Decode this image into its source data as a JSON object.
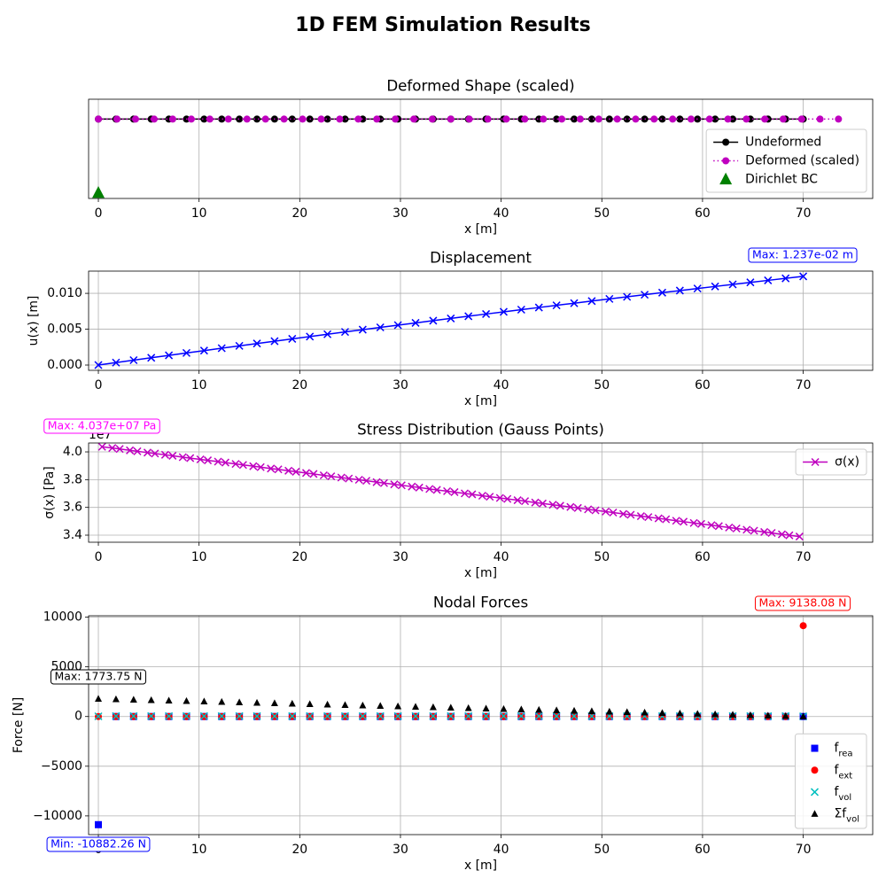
{
  "title": "1D FEM Simulation Results",
  "chart_data": [
    {
      "type": "line",
      "title": "Deformed Shape (scaled)",
      "xlabel": "x [m]",
      "xlim": [
        -0.97,
        76.9
      ],
      "ylim": [
        -1,
        0.25
      ],
      "xticks": [
        0,
        10,
        20,
        30,
        40,
        50,
        60,
        70
      ],
      "grid": true,
      "legend": "lower right",
      "series": [
        {
          "name": "Undeformed",
          "color": "#000000",
          "marker": "o",
          "linestyle": "-",
          "x": [
            0,
            1.75,
            3.5,
            5.25,
            7,
            8.75,
            10.5,
            12.25,
            14,
            15.75,
            17.5,
            19.25,
            21,
            22.75,
            24.5,
            26.25,
            28,
            29.75,
            31.5,
            33.25,
            35,
            36.75,
            38.5,
            40.25,
            42,
            43.75,
            45.5,
            47.25,
            49,
            50.75,
            52.5,
            54.25,
            56,
            57.75,
            59.5,
            61.25,
            63,
            64.75,
            66.5,
            68.25,
            70
          ],
          "values": [
            0,
            0,
            0,
            0,
            0,
            0,
            0,
            0,
            0,
            0,
            0,
            0,
            0,
            0,
            0,
            0,
            0,
            0,
            0,
            0,
            0,
            0,
            0,
            0,
            0,
            0,
            0,
            0,
            0,
            0,
            0,
            0,
            0,
            0,
            0,
            0,
            0,
            0,
            0,
            0,
            0
          ]
        },
        {
          "name": "Deformed (scaled)",
          "color": "#bf00bf",
          "marker": "o",
          "linestyle": ":",
          "x": [
            0,
            1.85,
            3.69,
            5.54,
            7.38,
            9.23,
            11.07,
            12.91,
            14.76,
            16.6,
            18.44,
            20.28,
            22.13,
            23.97,
            25.81,
            27.65,
            29.49,
            31.33,
            33.16,
            35.0,
            36.84,
            38.68,
            40.51,
            42.35,
            44.19,
            46.02,
            47.86,
            49.69,
            51.53,
            53.36,
            55.19,
            57.03,
            58.86,
            60.69,
            62.52,
            64.35,
            66.18,
            68.01,
            69.84,
            71.67,
            73.5
          ],
          "values": [
            0,
            0,
            0,
            0,
            0,
            0,
            0,
            0,
            0,
            0,
            0,
            0,
            0,
            0,
            0,
            0,
            0,
            0,
            0,
            0,
            0,
            0,
            0,
            0,
            0,
            0,
            0,
            0,
            0,
            0,
            0,
            0,
            0,
            0,
            0,
            0,
            0,
            0,
            0,
            0,
            0
          ]
        },
        {
          "name": "Dirichlet BC",
          "color": "#008000",
          "marker": "^",
          "marker_size": 14,
          "x": [
            0
          ],
          "values": [
            -0.93
          ]
        }
      ]
    },
    {
      "type": "line",
      "title": "Displacement",
      "xlabel": "x [m]",
      "ylabel": "u(x) [m]",
      "x": [
        0,
        1.75,
        3.5,
        5.25,
        7,
        8.75,
        10.5,
        12.25,
        14,
        15.75,
        17.5,
        19.25,
        21,
        22.75,
        24.5,
        26.25,
        28,
        29.75,
        31.5,
        33.25,
        35,
        36.75,
        38.5,
        40.25,
        42,
        43.75,
        45.5,
        47.25,
        49,
        50.75,
        52.5,
        54.25,
        56,
        57.75,
        59.5,
        61.25,
        63,
        64.75,
        66.5,
        68.25,
        70
      ],
      "values": [
        0,
        0.00034,
        0.000678,
        0.001015,
        0.00135,
        0.001684,
        0.002016,
        0.002346,
        0.002675,
        0.003003,
        0.003329,
        0.003653,
        0.003975,
        0.004296,
        0.004616,
        0.004934,
        0.00525,
        0.005565,
        0.005878,
        0.00619,
        0.0065,
        0.006808,
        0.007115,
        0.00742,
        0.007724,
        0.008026,
        0.008327,
        0.008625,
        0.008923,
        0.009219,
        0.009513,
        0.009806,
        0.010097,
        0.010386,
        0.010674,
        0.010961,
        0.011246,
        0.011529,
        0.01181,
        0.01209,
        0.01237
      ],
      "color": "#0000ff",
      "marker": "x",
      "linestyle": "-",
      "xlim": [
        -0.97,
        76.9
      ],
      "ylim": [
        -0.00074,
        0.0131
      ],
      "xticks": [
        0,
        10,
        20,
        30,
        40,
        50,
        60,
        70
      ],
      "yticks": [
        {
          "value": 0,
          "label": "0.000"
        },
        {
          "value": 0.005,
          "label": "0.005"
        },
        {
          "value": 0.01,
          "label": "0.010"
        }
      ],
      "grid": true,
      "annotations": [
        {
          "text": "Max: 1.237e-02 m",
          "color": "#0000ff"
        }
      ]
    },
    {
      "type": "line",
      "title": "Stress Distribution (Gauss Points)",
      "xlabel": "x [m]",
      "ylabel": "σ(x) [Pa]",
      "y_offset_label": "1e7",
      "x": [
        0.37,
        1.38,
        2.12,
        3.13,
        3.87,
        4.88,
        5.62,
        6.63,
        7.37,
        8.38,
        9.12,
        10.13,
        10.87,
        11.88,
        12.62,
        13.63,
        14.37,
        15.38,
        16.12,
        17.13,
        17.87,
        18.88,
        19.62,
        20.63,
        21.37,
        22.38,
        23.12,
        24.13,
        24.87,
        25.88,
        26.62,
        27.63,
        28.37,
        29.38,
        30.12,
        31.13,
        31.87,
        32.88,
        33.62,
        34.63,
        35.37,
        36.38,
        37.12,
        38.13,
        38.87,
        39.88,
        40.62,
        41.63,
        42.37,
        43.38,
        44.12,
        45.13,
        45.87,
        46.88,
        47.62,
        48.63,
        49.37,
        50.38,
        51.12,
        52.13,
        52.87,
        53.88,
        54.62,
        55.63,
        56.37,
        57.38,
        58.12,
        59.13,
        59.87,
        60.88,
        61.62,
        62.63,
        63.37,
        64.38,
        65.12,
        66.13,
        66.87,
        67.88,
        68.62,
        69.63
      ],
      "xlim": [
        -0.97,
        76.9
      ],
      "ylim": [
        3.349,
        4.064
      ],
      "xticks": [
        0,
        10,
        20,
        30,
        40,
        50,
        60,
        70
      ],
      "yticks": [
        3.4,
        3.6,
        3.8,
        {
          "value": 4,
          "label": "4.0"
        }
      ],
      "grid": true,
      "legend": "upper right",
      "series": [
        {
          "name": "σ(x)",
          "color": "#bf00bf",
          "marker": "x",
          "linestyle": "-",
          "values": [
            4.037,
            4.028,
            4.021,
            4.011,
            4.004,
            3.995,
            3.988,
            3.979,
            3.972,
            3.962,
            3.955,
            3.946,
            3.939,
            3.93,
            3.923,
            3.913,
            3.906,
            3.897,
            3.89,
            3.88,
            3.874,
            3.864,
            3.857,
            3.848,
            3.841,
            3.831,
            3.824,
            3.815,
            3.808,
            3.799,
            3.792,
            3.782,
            3.775,
            3.766,
            3.759,
            3.75,
            3.743,
            3.733,
            3.726,
            3.717,
            3.71,
            3.701,
            3.694,
            3.684,
            3.677,
            3.668,
            3.661,
            3.652,
            3.645,
            3.635,
            3.628,
            3.619,
            3.612,
            3.603,
            3.596,
            3.586,
            3.579,
            3.57,
            3.563,
            3.553,
            3.547,
            3.537,
            3.53,
            3.521,
            3.514,
            3.504,
            3.497,
            3.488,
            3.481,
            3.472,
            3.465,
            3.455,
            3.448,
            3.439,
            3.432,
            3.423,
            3.416,
            3.406,
            3.399,
            3.39
          ]
        }
      ],
      "annotations": [
        {
          "text": "Max: 4.037e+07 Pa",
          "color": "#ff00ff"
        }
      ]
    },
    {
      "type": "scatter",
      "title": "Nodal Forces",
      "xlabel": "x [m]",
      "ylabel": "Force [N]",
      "x": [
        0,
        1.75,
        3.5,
        5.25,
        7,
        8.75,
        10.5,
        12.25,
        14,
        15.75,
        17.5,
        19.25,
        21,
        22.75,
        24.5,
        26.25,
        28,
        29.75,
        31.5,
        33.25,
        35,
        36.75,
        38.5,
        40.25,
        42,
        43.75,
        45.5,
        47.25,
        49,
        50.75,
        52.5,
        54.25,
        56,
        57.75,
        59.5,
        61.25,
        63,
        64.75,
        66.5,
        68.25,
        70
      ],
      "xlim": [
        -0.97,
        76.9
      ],
      "ylim": [
        -11883,
        10139
      ],
      "xticks": [
        0,
        10,
        20,
        30,
        40,
        50,
        60,
        70
      ],
      "yticks": [
        {
          "value": -10000,
          "label": "−10000"
        },
        {
          "value": -5000,
          "label": "−5000"
        },
        0,
        5000,
        10000
      ],
      "grid": true,
      "legend": "lower right",
      "series": [
        {
          "name": "f",
          "name_sub": "rea",
          "color": "#0000ff",
          "marker": "s",
          "values": [
            -10882.26,
            0,
            0,
            0,
            0,
            0,
            0,
            0,
            0,
            0,
            0,
            0,
            0,
            0,
            0,
            0,
            0,
            0,
            0,
            0,
            0,
            0,
            0,
            0,
            0,
            0,
            0,
            0,
            0,
            0,
            0,
            0,
            0,
            0,
            0,
            0,
            0,
            0,
            0,
            0,
            0
          ]
        },
        {
          "name": "f",
          "name_sub": "ext",
          "color": "#ff0000",
          "marker": "o",
          "values": [
            0,
            0,
            0,
            0,
            0,
            0,
            0,
            0,
            0,
            0,
            0,
            0,
            0,
            0,
            0,
            0,
            0,
            0,
            0,
            0,
            0,
            0,
            0,
            0,
            0,
            0,
            0,
            0,
            0,
            0,
            0,
            0,
            0,
            0,
            0,
            0,
            0,
            0,
            0,
            0,
            9138.08
          ]
        },
        {
          "name": "f",
          "name_sub": "vol",
          "color": "#00bfbf",
          "marker": "x",
          "values": [
            22.17,
            44.34,
            44.34,
            44.34,
            44.34,
            44.34,
            44.34,
            44.34,
            44.34,
            44.34,
            44.34,
            44.34,
            44.34,
            44.34,
            44.34,
            44.34,
            44.34,
            44.34,
            44.34,
            44.34,
            44.34,
            44.34,
            44.34,
            44.34,
            44.34,
            44.34,
            44.34,
            44.34,
            44.34,
            44.34,
            44.34,
            44.34,
            44.34,
            44.34,
            44.34,
            44.34,
            44.34,
            44.34,
            44.34,
            44.34,
            22.17
          ]
        },
        {
          "name": "Σf",
          "name_sub": "vol",
          "color": "#000000",
          "marker": "^",
          "values": [
            1773.75,
            1729.41,
            1685.07,
            1640.73,
            1596.39,
            1552.05,
            1507.71,
            1463.37,
            1419.03,
            1374.69,
            1330.35,
            1286.01,
            1241.67,
            1197.33,
            1152.99,
            1108.65,
            1064.31,
            1019.97,
            975.63,
            931.29,
            886.95,
            842.61,
            798.27,
            753.93,
            709.59,
            665.25,
            620.91,
            576.57,
            532.23,
            487.89,
            443.55,
            399.21,
            354.87,
            310.53,
            266.19,
            221.85,
            177.51,
            133.17,
            88.83,
            44.49,
            0
          ]
        }
      ],
      "annotations": [
        {
          "text": "Max: 9138.08 N",
          "color": "#ff0000"
        },
        {
          "text": "Max: 1773.75 N",
          "color": "#000000"
        },
        {
          "text": "Min: -10882.26 N",
          "color": "#0000ff"
        }
      ]
    }
  ]
}
